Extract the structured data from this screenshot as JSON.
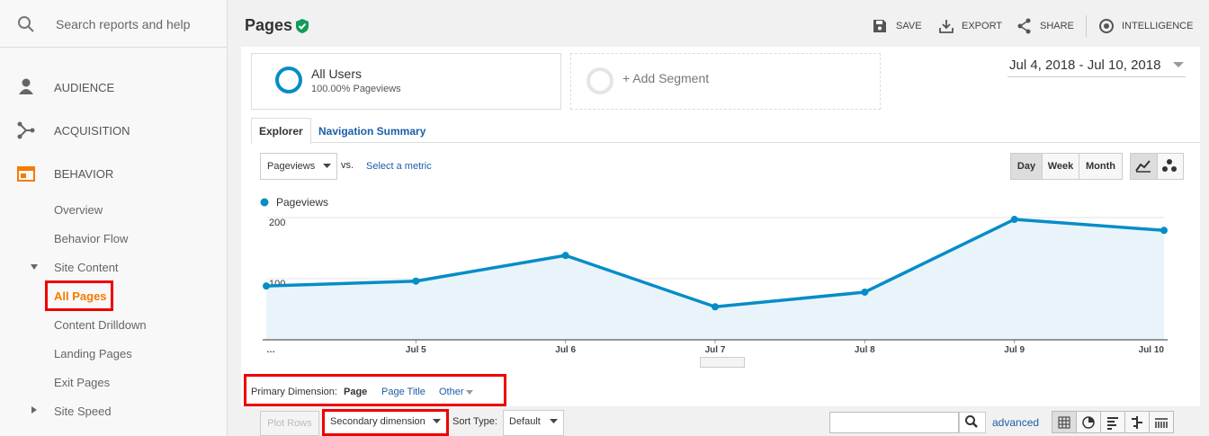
{
  "sidebar": {
    "search": "Search reports and help",
    "items": [
      "AUDIENCE",
      "ACQUISITION",
      "BEHAVIOR",
      "Overview",
      "Behavior Flow",
      "Site Content",
      "All Pages",
      "Content Drilldown",
      "Landing Pages",
      "Exit Pages",
      "Site Speed"
    ]
  },
  "header": {
    "title": "Pages",
    "actions": [
      "SAVE",
      "EXPORT",
      "SHARE",
      "INTELLIGENCE"
    ]
  },
  "segments": {
    "active": "All Users",
    "active_detail": "100.00% Pageviews",
    "add": "+ Add Segment"
  },
  "date_range": "Jul 4, 2018 - Jul 10, 2018",
  "tabs": [
    "Explorer",
    "Navigation Summary"
  ],
  "controls": {
    "metric": "Pageviews",
    "vs": "vs.",
    "select_metric": "Select a metric",
    "granularity": [
      "Day",
      "Week",
      "Month"
    ]
  },
  "chart_data": {
    "type": "line",
    "categories": [
      "…",
      "Jul 5",
      "Jul 6",
      "Jul 7",
      "Jul 8",
      "Jul 9",
      "Jul 10"
    ],
    "series": [
      {
        "name": "Pageviews",
        "color": "#058dc7",
        "values": [
          88,
          96,
          138,
          54,
          78,
          197,
          179
        ]
      }
    ],
    "ylim": [
      0,
      200
    ],
    "yticks": [
      100,
      200
    ],
    "grid": true
  },
  "dimensions": {
    "label": "Primary Dimension:",
    "options": [
      "Page",
      "Page Title",
      "Other"
    ]
  },
  "table_controls": {
    "plot_rows": "Plot Rows",
    "secondary": "Secondary dimension",
    "sort_label": "Sort Type:",
    "sort": "Default",
    "advanced": "advanced"
  }
}
